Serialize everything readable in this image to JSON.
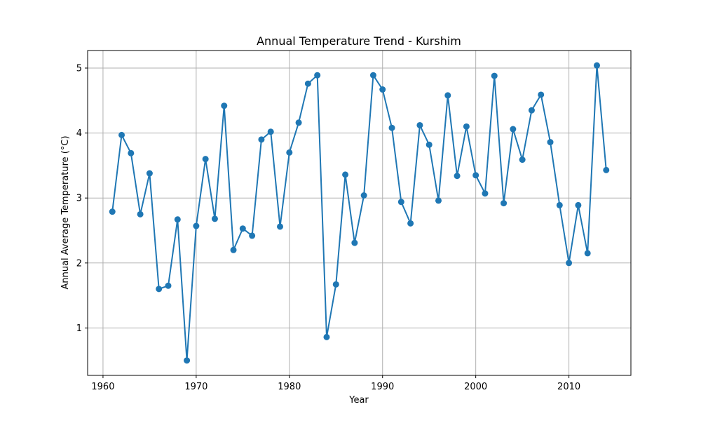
{
  "chart_data": {
    "type": "line",
    "title": "Annual Temperature Trend - Kurshim",
    "xlabel": "Year",
    "ylabel": "Annual Average Temperature (°C)",
    "xlim": [
      1958.35,
      2016.65
    ],
    "ylim": [
      0.27,
      5.27
    ],
    "xticks": [
      1960,
      1970,
      1980,
      1990,
      2000,
      2010
    ],
    "yticks": [
      1,
      2,
      3,
      4,
      5
    ],
    "grid": true,
    "line_color": "#1f77b4",
    "marker": "circle",
    "series": [
      {
        "x": [
          1961,
          1962,
          1963,
          1964,
          1965,
          1966,
          1967,
          1968,
          1969,
          1970,
          1971,
          1972,
          1973,
          1974,
          1975,
          1976,
          1977,
          1978,
          1979,
          1980,
          1981,
          1982,
          1983,
          1984,
          1985,
          1986,
          1987,
          1988,
          1989,
          1990,
          1991,
          1992,
          1993,
          1994,
          1995,
          1996,
          1997,
          1998,
          1999,
          2000,
          2001,
          2002,
          2003,
          2004,
          2005,
          2006,
          2007,
          2008,
          2009,
          2010,
          2011,
          2012,
          2013,
          2014
        ],
        "values": [
          2.79,
          3.97,
          3.69,
          2.75,
          3.38,
          1.6,
          1.65,
          2.67,
          0.5,
          2.57,
          3.6,
          2.68,
          4.42,
          2.2,
          2.53,
          2.42,
          3.9,
          4.02,
          2.56,
          3.7,
          4.16,
          4.76,
          4.89,
          0.86,
          1.67,
          3.36,
          2.31,
          3.04,
          4.89,
          4.67,
          4.08,
          2.94,
          2.61,
          4.12,
          3.82,
          2.96,
          4.58,
          3.34,
          4.1,
          3.35,
          3.07,
          4.88,
          2.92,
          4.06,
          3.59,
          4.35,
          4.59,
          3.86,
          2.89,
          2.0,
          2.89,
          2.15,
          5.04,
          3.43
        ]
      }
    ]
  }
}
